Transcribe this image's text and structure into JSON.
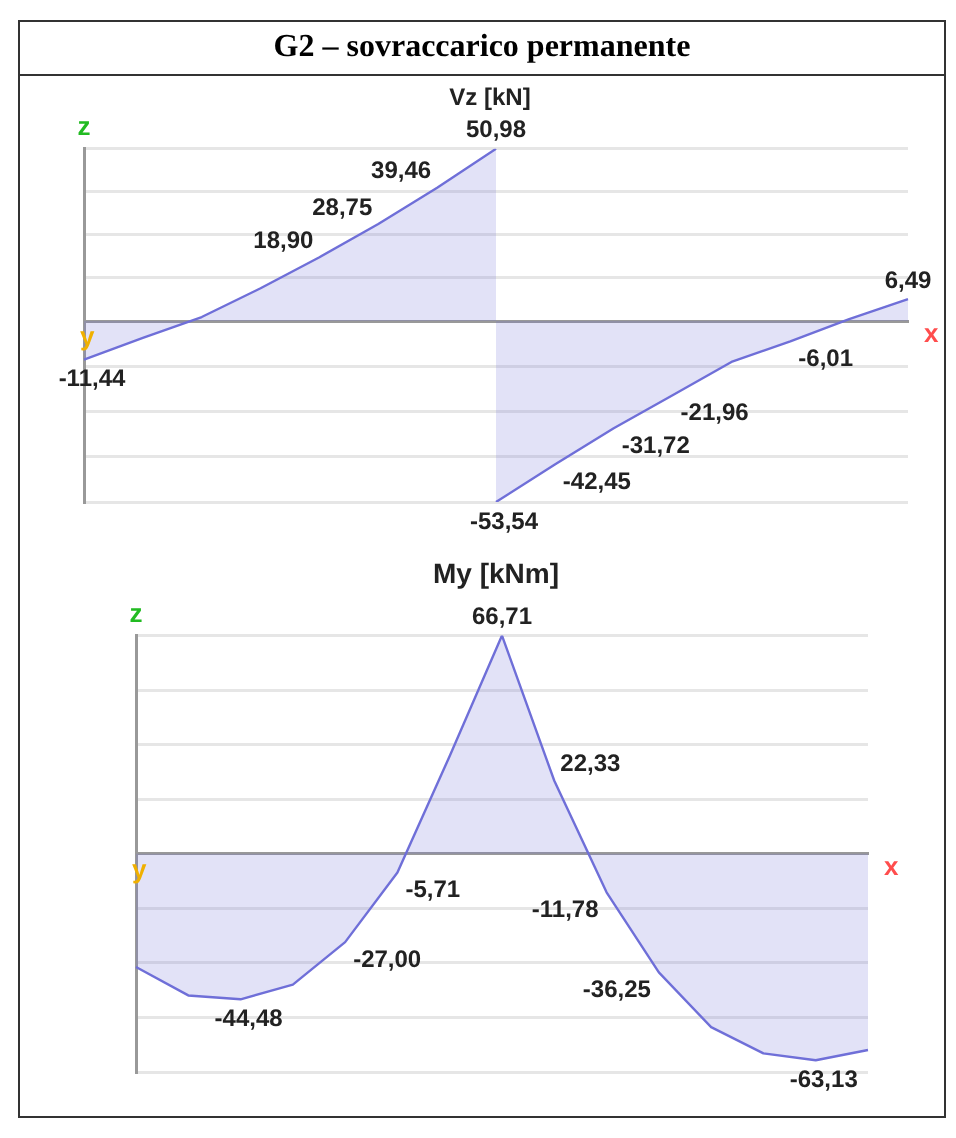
{
  "chart_data": [
    {
      "type": "area",
      "title": "G2 – sovraccarico permanente",
      "subtitle": "Vz [kN]",
      "xlabel": "x",
      "ylabel": "z",
      "annotations": [
        "y"
      ],
      "categories": [
        null,
        null,
        null,
        null,
        null,
        null,
        null,
        null,
        null,
        null,
        null,
        null,
        null,
        null,
        null
      ],
      "series": [
        {
          "color": "#6f6fd8",
          "values": [
            -11.44,
            -5.0,
            1.2,
            9.7,
            18.9,
            28.75,
            39.46,
            50.98,
            null,
            null,
            null,
            null,
            null,
            null,
            null
          ],
          "value_labels": [
            "-11,44",
            null,
            null,
            null,
            "18,90",
            "28,75",
            "39,46",
            "50,98",
            null,
            null,
            null,
            null,
            null,
            null,
            null
          ]
        },
        {
          "color": "#6f6fd8",
          "values": [
            null,
            null,
            null,
            null,
            null,
            null,
            null,
            -53.54,
            -42.45,
            -31.72,
            -21.96,
            -12.1,
            -6.01,
            0.6,
            6.49
          ],
          "value_labels": [
            null,
            null,
            null,
            null,
            null,
            null,
            null,
            "-53,54",
            "-42,45",
            "-31,72",
            "-21,96",
            null,
            "-6,01",
            null,
            "6,49"
          ]
        }
      ],
      "ylim": [
        -53.54,
        50.98
      ],
      "yticks": [
        {
          "value": 50.98,
          "label": null
        },
        {
          "value": 38.24,
          "label": null
        },
        {
          "value": 25.49,
          "label": null
        },
        {
          "value": 12.75,
          "label": null
        },
        {
          "value": 0,
          "label": null
        },
        {
          "value": -13.39,
          "label": null
        },
        {
          "value": -26.77,
          "label": null
        },
        {
          "value": -40.16,
          "label": null
        },
        {
          "value": -53.54,
          "label": null
        }
      ],
      "grid": "y"
    },
    {
      "type": "area",
      "title": "My [kNm]",
      "xlabel": "x",
      "ylabel": "z",
      "annotations": [
        "y"
      ],
      "categories": [
        null,
        null,
        null,
        null,
        null,
        null,
        null,
        null,
        null,
        null,
        null,
        null,
        null,
        null,
        null
      ],
      "series": [
        {
          "color": "#6f6fd8",
          "values": [
            -34.6,
            -43.3,
            -44.48,
            -40.0,
            -27.0,
            -5.71,
            29.9,
            66.71,
            22.33,
            -11.78,
            -36.25,
            -53.0,
            -61.0,
            -63.13,
            -60.0
          ],
          "value_labels": [
            null,
            null,
            "-44,48",
            null,
            "-27,00",
            "-5,71",
            null,
            "66,71",
            "22,33",
            "-11,78",
            "-36,25",
            null,
            null,
            "-63,13",
            null
          ]
        }
      ],
      "ylim": [
        -66.71,
        66.71
      ],
      "yticks": [
        {
          "value": 66.71,
          "label": null
        },
        {
          "value": 50.03,
          "label": null
        },
        {
          "value": 33.36,
          "label": null
        },
        {
          "value": 16.68,
          "label": null
        },
        {
          "value": 0,
          "label": null
        },
        {
          "value": -16.68,
          "label": null
        },
        {
          "value": -33.36,
          "label": null
        },
        {
          "value": -50.03,
          "label": null
        },
        {
          "value": -66.71,
          "label": null
        }
      ],
      "grid": "y"
    }
  ]
}
